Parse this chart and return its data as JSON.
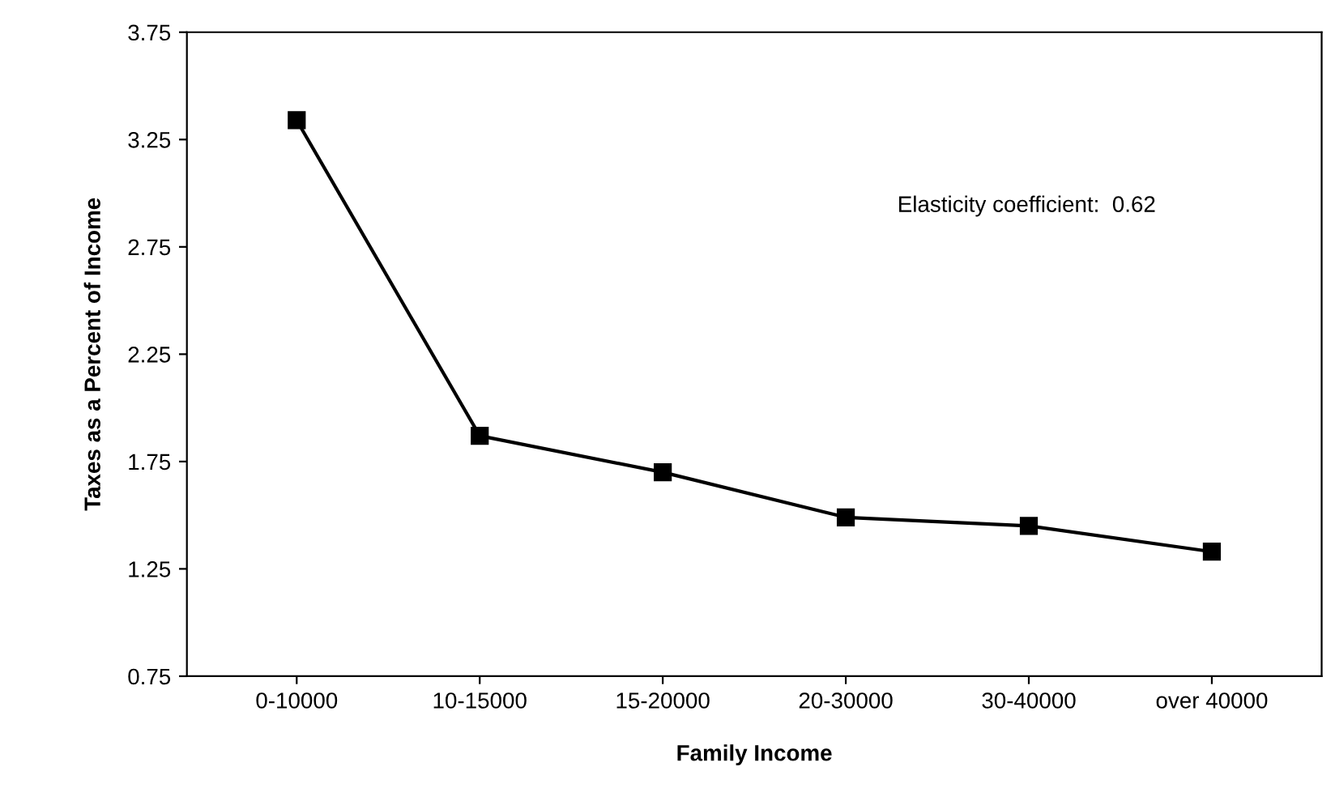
{
  "chart_data": {
    "type": "line",
    "xlabel": "Family Income",
    "ylabel": "Taxes as a Percent of Income",
    "categories": [
      "0-10000",
      "10-15000",
      "15-20000",
      "20-30000",
      "30-40000",
      "over 40000"
    ],
    "series": [
      {
        "color": "#000000",
        "values": [
          3.34,
          1.87,
          1.7,
          1.49,
          1.45,
          1.33
        ]
      }
    ],
    "ylim": [
      0.75,
      3.75
    ],
    "yticks": [
      0.75,
      1.25,
      1.75,
      2.25,
      2.75,
      3.25,
      3.75
    ],
    "marker": "square",
    "line_style": "solid",
    "grid": false,
    "legend": false,
    "annotations": [
      "Elasticity coefficient:  0.62"
    ]
  }
}
